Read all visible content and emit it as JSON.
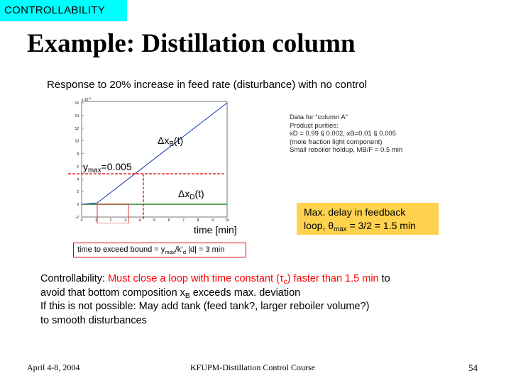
{
  "tag": "CONTROLLABILITY",
  "title": "Example: Distillation column",
  "subtitle": "Response to 20% increase in feed rate (disturbance) with no control",
  "plot": {
    "exponent": "x 10",
    "exponent_power": "-3",
    "yticks": [
      "16",
      "14",
      "12",
      "10",
      "8",
      "6",
      "4",
      "2",
      "0",
      "-2"
    ],
    "xticks": [
      "0",
      "1",
      "2",
      "3",
      "4",
      "5",
      "6",
      "7",
      "8",
      "9",
      "10"
    ],
    "xlabel": "time [min]",
    "series_xb_label": "Δx",
    "series_xb_sub": "B",
    "series_xb_tail": "(t)",
    "series_xd_label": "Δx",
    "series_xd_sub": "D",
    "series_xd_tail": "(t)",
    "ymax_label": "y",
    "ymax_sub": "max",
    "ymax_tail": "=0.005",
    "colors": {
      "xb": "#1f3fbf",
      "xd": "#2a8a2a",
      "bound": "#e00000"
    }
  },
  "info_box": {
    "line1": "Data for “column A”",
    "line2": "Product purities:",
    "line3": "xD = 0.99 § 0.002, xB=0.01 § 0.005",
    "line4": "(mole fraction light component)",
    "line5": "Small reboiler holdup, MB/F = 0.5 min"
  },
  "delay_box": {
    "line1": "Max. delay in feedback",
    "line2_a": "loop, θ",
    "line2_sub": "max",
    "line2_b": " = 3/2 = 1.5 min",
    "color": "#ffd24d"
  },
  "bound_box": {
    "a": "time to exceed bound = y",
    "sub1": "max",
    "b": "/k’",
    "sub2": "d",
    "c": " |d| = 3 min"
  },
  "controllability": {
    "line1_a": "Controllability: ",
    "line1_red": "Must close a loop with time constant (τ",
    "line1_red_sub": "c",
    "line1_red_b": ") faster than 1.5 min",
    "line1_b": " to",
    "line2_a": "avoid that bottom composition x",
    "line2_sub": "B",
    "line2_b": " exceeds max. deviation",
    "line3": "If this is not possible: May add tank (feed tank?, larger reboiler volume?)",
    "line4": "to smooth disturbances"
  },
  "footer": {
    "date": "April 4-8, 2004",
    "course": "KFUPM-Distillation Control Course",
    "page": "54"
  }
}
